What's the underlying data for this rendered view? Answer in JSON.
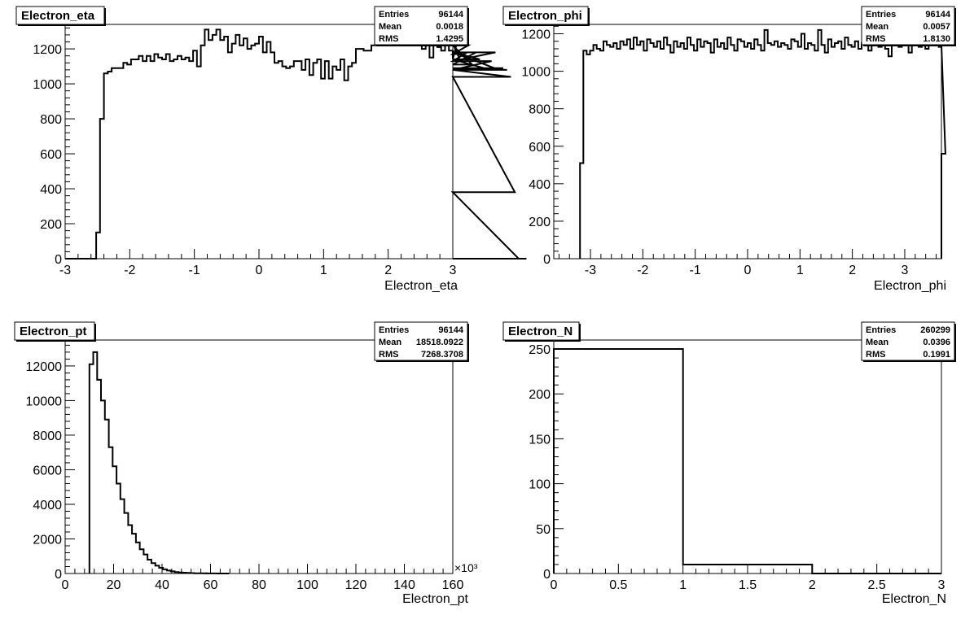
{
  "chart_data": [
    {
      "type": "histogram",
      "title": "Electron_eta",
      "xlabel": "Electron_eta",
      "ylabel": "",
      "xlim": [
        -3,
        3
      ],
      "ylim": [
        0,
        1340
      ],
      "xticks": [
        -3,
        -2,
        -1,
        0,
        1,
        2,
        3
      ],
      "yticks": [
        0,
        200,
        400,
        600,
        800,
        1000,
        1200
      ],
      "grid": false,
      "stats": [
        {
          "key": "Entries",
          "value": "96144"
        },
        {
          "key": "Mean",
          "value": "0.0018"
        },
        {
          "key": "RMS",
          "value": "1.4295"
        }
      ],
      "bins": {
        "x_start": -3,
        "width": 0.06
      },
      "values": [
        0,
        0,
        0,
        0,
        0,
        0,
        0,
        0,
        150,
        800,
        1060,
        1070,
        1090,
        1090,
        1090,
        1120,
        1110,
        1140,
        1140,
        1160,
        1130,
        1160,
        1130,
        1170,
        1150,
        1140,
        1170,
        1130,
        1140,
        1160,
        1140,
        1150,
        1130,
        1190,
        1100,
        1220,
        1310,
        1250,
        1280,
        1310,
        1250,
        1270,
        1180,
        1230,
        1280,
        1220,
        1260,
        1200,
        1220,
        1230,
        1270,
        1180,
        1240,
        1180,
        1120,
        1130,
        1100,
        1090,
        1100,
        1130,
        1130,
        1080,
        1140,
        1050,
        1120,
        1140,
        1030,
        1130,
        1030,
        1100,
        1080,
        1140,
        1020,
        1100,
        1120,
        1200,
        1200,
        1190,
        1190,
        1220,
        1300,
        1250,
        1290,
        1240,
        1280,
        1230,
        1280,
        1220,
        1300,
        1220,
        1300,
        1260,
        1200,
        1270,
        1150,
        1250,
        1210,
        1190,
        1250,
        1190,
        1140,
        1230,
        1130,
        1170,
        1220,
        1110,
        1180,
        1140,
        1090,
        1080,
        1130,
        1180,
        1080,
        1090,
        1080,
        1040,
        380,
        0,
        0,
        0
      ]
    },
    {
      "type": "histogram",
      "title": "Electron_phi",
      "xlabel": "Electron_phi",
      "ylabel": "",
      "xlim": [
        -3.7,
        3.7
      ],
      "ylim": [
        0,
        1250
      ],
      "xticks": [
        -3,
        -2,
        -1,
        0,
        1,
        2,
        3
      ],
      "yticks": [
        0,
        200,
        400,
        600,
        800,
        1000,
        1200
      ],
      "grid": false,
      "stats": [
        {
          "key": "Entries",
          "value": "96144"
        },
        {
          "key": "Mean",
          "value": "0.0057"
        },
        {
          "key": "RMS",
          "value": "1.8130"
        }
      ],
      "bins": {
        "x_start": -3.2,
        "width": 0.064
      },
      "values": [
        510,
        1110,
        1090,
        1110,
        1140,
        1120,
        1110,
        1160,
        1140,
        1130,
        1150,
        1120,
        1160,
        1140,
        1170,
        1120,
        1180,
        1140,
        1160,
        1110,
        1170,
        1150,
        1130,
        1160,
        1120,
        1180,
        1140,
        1100,
        1160,
        1130,
        1150,
        1120,
        1180,
        1140,
        1110,
        1170,
        1130,
        1160,
        1150,
        1100,
        1170,
        1130,
        1150,
        1120,
        1180,
        1140,
        1110,
        1170,
        1160,
        1130,
        1150,
        1120,
        1170,
        1140,
        1110,
        1220,
        1150,
        1140,
        1160,
        1130,
        1150,
        1140,
        1120,
        1170,
        1160,
        1130,
        1200,
        1120,
        1150,
        1140,
        1110,
        1220,
        1140,
        1100,
        1170,
        1130,
        1150,
        1160,
        1120,
        1180,
        1140,
        1130,
        1160,
        1120,
        1150,
        1170,
        1110,
        1160,
        1140,
        1130,
        1180,
        1120,
        1080,
        1160,
        1140,
        1130,
        1180,
        1150,
        1100,
        1170,
        1140,
        1130,
        1160,
        1120,
        1140,
        1160,
        1150,
        1130,
        1140,
        560
      ]
    },
    {
      "type": "histogram",
      "title": "Electron_pt",
      "xlabel": "Electron_pt",
      "ylabel": "",
      "xlim": [
        0,
        160
      ],
      "ylim": [
        0,
        13500
      ],
      "xticks": [
        0,
        20,
        40,
        60,
        80,
        100,
        120,
        140,
        160
      ],
      "yticks": [
        0,
        2000,
        4000,
        6000,
        8000,
        10000,
        12000
      ],
      "x_exponent_label": "×10³",
      "grid": false,
      "stats": [
        {
          "key": "Entries",
          "value": "96144"
        },
        {
          "key": "Mean",
          "value": "18518.0922"
        },
        {
          "key": "RMS",
          "value": "7268.3708"
        }
      ],
      "bins": {
        "x_start": 10,
        "width": 1.6
      },
      "values": [
        12100,
        12800,
        11200,
        10000,
        8900,
        7300,
        6200,
        5200,
        4300,
        3500,
        2800,
        2300,
        1800,
        1400,
        1100,
        800,
        600,
        450,
        330,
        240,
        170,
        120,
        85,
        60,
        45,
        32,
        22,
        16,
        12,
        8,
        6,
        4,
        3,
        2,
        1,
        1
      ]
    },
    {
      "type": "histogram",
      "title": "Electron_N",
      "xlabel": "Electron_N",
      "ylabel": "",
      "xlim": [
        0,
        3
      ],
      "ylim": [
        0,
        260
      ],
      "xticks": [
        0,
        0.5,
        1,
        1.5,
        2,
        2.5,
        3
      ],
      "xtick_labels": [
        "0",
        "0.5",
        "1",
        "1.5",
        "2",
        "2.5",
        "3"
      ],
      "yticks": [
        0,
        50,
        100,
        150,
        200,
        250
      ],
      "grid": false,
      "stats": [
        {
          "key": "Entries",
          "value": "260299"
        },
        {
          "key": "Mean",
          "value": "0.0396"
        },
        {
          "key": "RMS",
          "value": "0.1991"
        }
      ],
      "bins": {
        "x_start": 0,
        "width": 1
      },
      "values": [
        250,
        10,
        0
      ]
    }
  ]
}
